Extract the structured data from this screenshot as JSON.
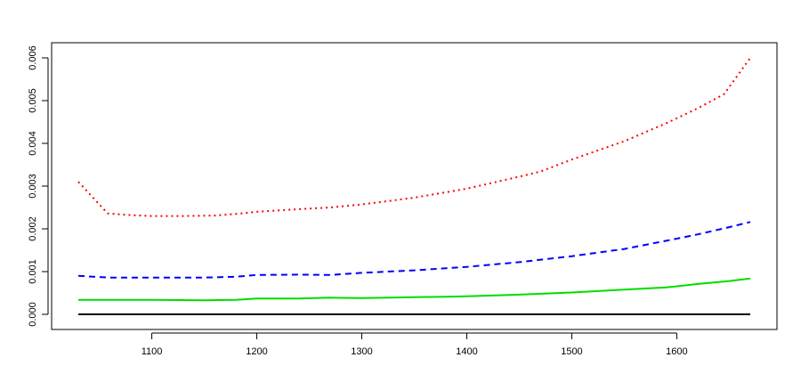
{
  "chart_data": {
    "type": "line",
    "title": "",
    "xlabel": "",
    "ylabel": "",
    "xlim": [
      1030,
      1670
    ],
    "ylim": [
      0,
      0.006
    ],
    "x_ticks": [
      1100,
      1200,
      1300,
      1400,
      1500,
      1600
    ],
    "x_tick_labels": [
      "1100",
      "1200",
      "1300",
      "1400",
      "1500",
      "1600"
    ],
    "y_ticks": [
      0,
      0.001,
      0.002,
      0.003,
      0.004,
      0.005,
      0.006
    ],
    "y_tick_labels": [
      "0.000",
      "0.001",
      "0.002",
      "0.003",
      "0.004",
      "0.005",
      "0.006"
    ],
    "grid": false,
    "legend": "none",
    "series": [
      {
        "color": "#000000",
        "line_style": "solid",
        "x": [
          1030,
          1670
        ],
        "values": [
          0,
          0
        ]
      },
      {
        "color": "#00dd00",
        "line_style": "solid",
        "x": [
          1030,
          1060,
          1100,
          1150,
          1180,
          1200,
          1240,
          1270,
          1300,
          1350,
          1400,
          1450,
          1500,
          1550,
          1590,
          1620,
          1650,
          1670
        ],
        "values": [
          0.00034,
          0.00034,
          0.00034,
          0.00033,
          0.00034,
          0.00037,
          0.00037,
          0.00039,
          0.00038,
          0.0004,
          0.00042,
          0.00046,
          0.00051,
          0.00058,
          0.00063,
          0.00071,
          0.00078,
          0.00084
        ]
      },
      {
        "color": "#0000ff",
        "line_style": "dashed",
        "x": [
          1030,
          1060,
          1100,
          1150,
          1180,
          1200,
          1240,
          1270,
          1300,
          1350,
          1400,
          1450,
          1500,
          1550,
          1590,
          1620,
          1650,
          1670
        ],
        "values": [
          0.0009,
          0.00086,
          0.00086,
          0.00086,
          0.00088,
          0.00092,
          0.00093,
          0.00092,
          0.00097,
          0.00103,
          0.00111,
          0.00122,
          0.00136,
          0.00153,
          0.00172,
          0.00187,
          0.00204,
          0.00216
        ]
      },
      {
        "color": "#ff0000",
        "line_style": "dotted",
        "x": [
          1030,
          1058,
          1080,
          1100,
          1130,
          1160,
          1185,
          1200,
          1240,
          1270,
          1300,
          1350,
          1400,
          1450,
          1470,
          1500,
          1550,
          1590,
          1620,
          1645,
          1670
        ],
        "values": [
          0.0031,
          0.00236,
          0.00232,
          0.0023,
          0.0023,
          0.00231,
          0.00236,
          0.0024,
          0.00246,
          0.0025,
          0.00257,
          0.00273,
          0.00294,
          0.00322,
          0.00334,
          0.00362,
          0.00405,
          0.00447,
          0.00482,
          0.00515,
          0.006
        ]
      }
    ]
  }
}
